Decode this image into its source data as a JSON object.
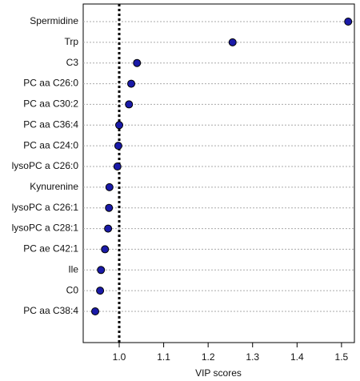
{
  "chart_data": {
    "type": "dot",
    "x_label": "VIP scores",
    "categories": [
      "Spermidine",
      "Trp",
      "C3",
      "PC aa C26:0",
      "PC aa C30:2",
      "PC aa C36:4",
      "PC aa C24:0",
      "lysoPC a C26:0",
      "Kynurenine",
      "lysoPC a C26:1",
      "lysoPC a C28:1",
      "PC ae C42:1",
      "Ile",
      "C0",
      "PC aa C38:4"
    ],
    "values": [
      1.515,
      1.255,
      1.04,
      1.027,
      1.022,
      1.0,
      0.998,
      0.996,
      0.978,
      0.977,
      0.975,
      0.968,
      0.959,
      0.957,
      0.946
    ],
    "color": "#1a1aa8",
    "xlim": [
      0.919,
      1.529
    ],
    "xticks": [
      {
        "value": 1,
        "label": "1.0"
      },
      1.1,
      1.2,
      1.3,
      1.4,
      1.5
    ],
    "reference_line": 1,
    "grid": true
  }
}
